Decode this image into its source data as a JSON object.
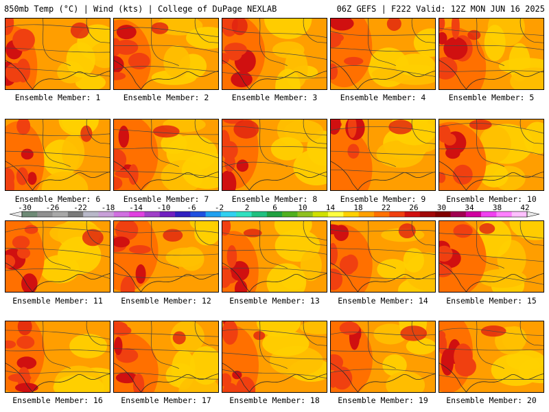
{
  "header": {
    "left": "850mb Temp (°C) | Wind (kts) | College of DuPage NEXLAB",
    "right": "06Z GEFS | F222 Valid: 12Z MON JUN 16 2025"
  },
  "colorbar": {
    "labels": [
      "-30",
      "-26",
      "-22",
      "-18",
      "-14",
      "-10",
      "-6",
      "-2",
      "2",
      "6",
      "10",
      "14",
      "18",
      "22",
      "26",
      "30",
      "34",
      "38",
      "42"
    ],
    "colors": [
      "#6e8a76",
      "#909090",
      "#a8a8a8",
      "#7a7a7a",
      "#b8b8c8",
      "#c8a0d8",
      "#d070e0",
      "#e040e0",
      "#a040c8",
      "#7020c0",
      "#3020c0",
      "#2050e0",
      "#20a0f0",
      "#30d0f0",
      "#30e0c0",
      "#20c080",
      "#20a040",
      "#50b020",
      "#90c020",
      "#d0e000",
      "#ffff40",
      "#ffd000",
      "#ffa000",
      "#ff7000",
      "#f04010",
      "#d01010",
      "#a00808",
      "#800000",
      "#a00050",
      "#d000a0",
      "#f040f0",
      "#ff80ff",
      "#ffc0ff"
    ]
  },
  "panels": [
    {
      "label": "Ensemble Member: 1"
    },
    {
      "label": "Ensemble Member: 2"
    },
    {
      "label": "Ensemble Member: 3"
    },
    {
      "label": "Ensemble Member: 4"
    },
    {
      "label": "Ensemble Member: 5"
    },
    {
      "label": "Ensemble Member: 6"
    },
    {
      "label": "Ensemble Member: 7"
    },
    {
      "label": "Ensemble Member: 8"
    },
    {
      "label": "Ensemble Member: 9"
    },
    {
      "label": "Ensemble Member: 10"
    },
    {
      "label": "Ensemble Member: 11"
    },
    {
      "label": "Ensemble Member: 12"
    },
    {
      "label": "Ensemble Member: 13"
    },
    {
      "label": "Ensemble Member: 14"
    },
    {
      "label": "Ensemble Member: 15"
    },
    {
      "label": "Ensemble Member: 16"
    },
    {
      "label": "Ensemble Member: 17"
    },
    {
      "label": "Ensemble Member: 18"
    },
    {
      "label": "Ensemble Member: 19"
    },
    {
      "label": "Ensemble Member: 20"
    }
  ]
}
